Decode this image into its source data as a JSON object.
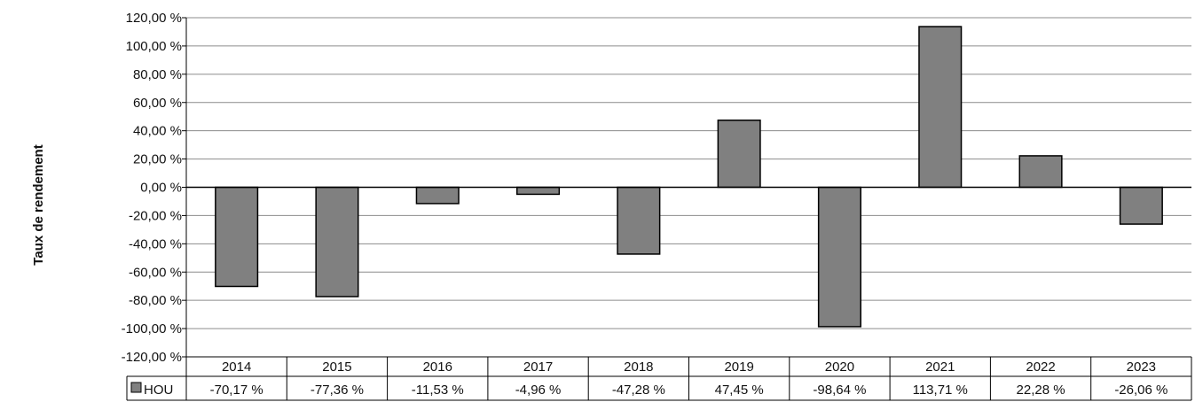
{
  "chart_data": {
    "type": "bar",
    "title": "",
    "xlabel": "",
    "ylabel": "Taux de rendement",
    "categories": [
      "2014",
      "2015",
      "2016",
      "2017",
      "2018",
      "2019",
      "2020",
      "2021",
      "2022",
      "2023"
    ],
    "series": [
      {
        "name": "HOU",
        "values": [
          -70.17,
          -77.36,
          -11.53,
          -4.96,
          -47.28,
          47.45,
          -98.64,
          113.71,
          22.28,
          -26.06
        ],
        "value_labels": [
          "-70,17 %",
          "-77,36 %",
          "-11,53 %",
          "-4,96 %",
          "-47,28 %",
          "47,45 %",
          "-98,64 %",
          "113,71 %",
          "22,28 %",
          "-26,06 %"
        ],
        "color": "#808080"
      }
    ],
    "ylim": [
      -120,
      100
    ],
    "ytick_values": [
      -120,
      -100,
      -80,
      -60,
      -40,
      -20,
      0,
      20,
      40,
      60,
      80,
      100,
      120
    ],
    "ytick_labels": [
      "-120,00 %",
      "-100,00 %",
      "-80,00 %",
      "-60,00 %",
      "-40,00 %",
      "-20,00 %",
      "0,00 %",
      "20,00 %",
      "40,00 %",
      "60,00 %",
      "80,00 %",
      "100,00 %",
      "120,00 %"
    ],
    "grid": true,
    "legend": "data-table-left",
    "data_table": true
  }
}
